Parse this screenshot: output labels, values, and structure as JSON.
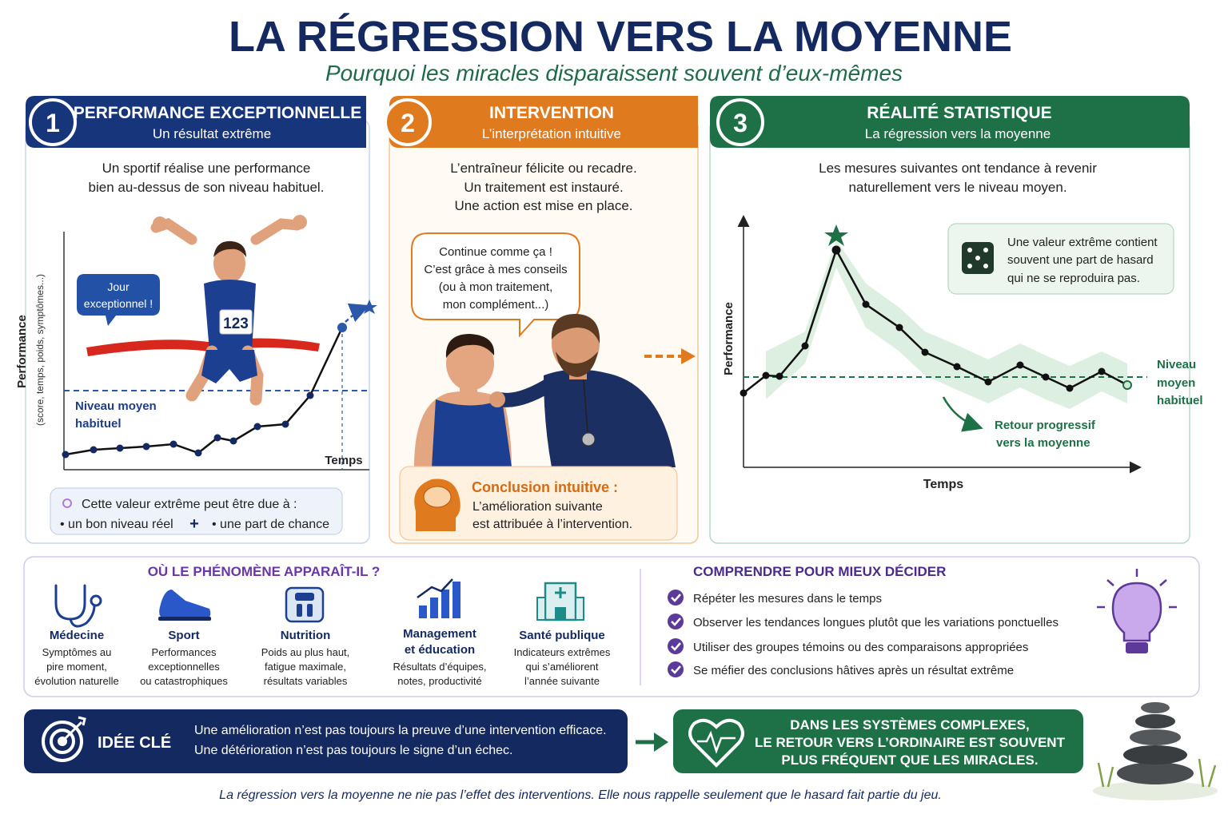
{
  "header": {
    "title": "LA RÉGRESSION VERS LA MOYENNE",
    "subtitle": "Pourquoi les miracles disparaissent souvent d’eux-mêmes"
  },
  "steps": [
    {
      "number": "1",
      "title": "PERFORMANCE EXCEPTIONNELLE",
      "subtitle": "Un résultat extrême",
      "text": [
        "Un sportif réalise une performance",
        "bien au-dessus de son niveau habituel."
      ],
      "bubble": [
        "Jour",
        "exceptionnel !"
      ],
      "bib": "123",
      "y_label": "Performance",
      "y_sublabel": "(score, temps, poids, symptômes...)",
      "x_label": "Temps",
      "mean_label": [
        "Niveau moyen",
        "habituel"
      ],
      "note_title": "Cette valeur extrême peut être due à :",
      "note_items": [
        "• un bon niveau réel",
        "• une part de chance"
      ],
      "note_plus": "+"
    },
    {
      "number": "2",
      "title": "INTERVENTION",
      "subtitle": "L’interprétation intuitive",
      "text": [
        "L’entraîneur félicite ou recadre.",
        "Un traitement est instauré.",
        "Une action est mise en place."
      ],
      "bubble": [
        "Continue comme ça !",
        "C’est grâce à mes conseils",
        "(ou à mon traitement,",
        "mon complément...)"
      ],
      "conclusion_title": "Conclusion intuitive :",
      "conclusion_text": [
        "L’amélioration suivante",
        "est attribuée à l’intervention."
      ]
    },
    {
      "number": "3",
      "title": "RÉALITÉ STATISTIQUE",
      "subtitle": "La régression vers la moyenne",
      "text": [
        "Les mesures suivantes ont tendance à revenir",
        "naturellement vers le niveau moyen."
      ],
      "info": [
        "Une valeur extrême contient",
        "souvent une part de hasard",
        "qui ne se reproduira pas."
      ],
      "y_label": "Performance",
      "x_label": "Temps",
      "mean_label": [
        "Niveau",
        "moyen",
        "habituel"
      ],
      "return_label": [
        "Retour progressif",
        "vers la moyenne"
      ]
    }
  ],
  "domains": {
    "title": "OÙ LE PHÉNOMÈNE APPARAÎT-IL ?",
    "items": [
      {
        "name": [
          "Médecine"
        ],
        "text": [
          "Symptômes au",
          "pire moment,",
          "évolution naturelle"
        ]
      },
      {
        "name": [
          "Sport"
        ],
        "text": [
          "Performances",
          "exceptionnelles",
          "ou catastrophiques"
        ]
      },
      {
        "name": [
          "Nutrition"
        ],
        "text": [
          "Poids au plus haut,",
          "fatigue maximale,",
          "résultats variables"
        ]
      },
      {
        "name": [
          "Management",
          "et éducation"
        ],
        "text": [
          "Résultats d’équipes,",
          "notes, productivité"
        ]
      },
      {
        "name": [
          "Santé publique"
        ],
        "text": [
          "Indicateurs extrêmes",
          "qui s’améliorent",
          "l’année suivante"
        ]
      }
    ]
  },
  "advice": {
    "title": "COMPRENDRE POUR MIEUX DÉCIDER",
    "items": [
      "Répéter les mesures dans le temps",
      "Observer les tendances longues plutôt que les variations ponctuelles",
      "Utiliser des groupes témoins ou des comparaisons appropriées",
      "Se méfier des conclusions hâtives après un résultat extrême"
    ]
  },
  "key_idea": {
    "label": "IDÉE CLÉ",
    "lines": [
      "Une amélioration n’est pas toujours la preuve d’une intervention efficace.",
      "Une détérioration n’est pas toujours le signe d’un échec."
    ]
  },
  "conclusion": [
    "DANS LES SYSTÈMES COMPLEXES,",
    "LE RETOUR VERS L’ORDINAIRE EST SOUVENT",
    "PLUS FRÉQUENT QUE LES MIRACLES."
  ],
  "footer": "La régression vers la moyenne ne nie pas l’effet des interventions. Elle nous rappelle seulement que le hasard fait partie du jeu."
}
